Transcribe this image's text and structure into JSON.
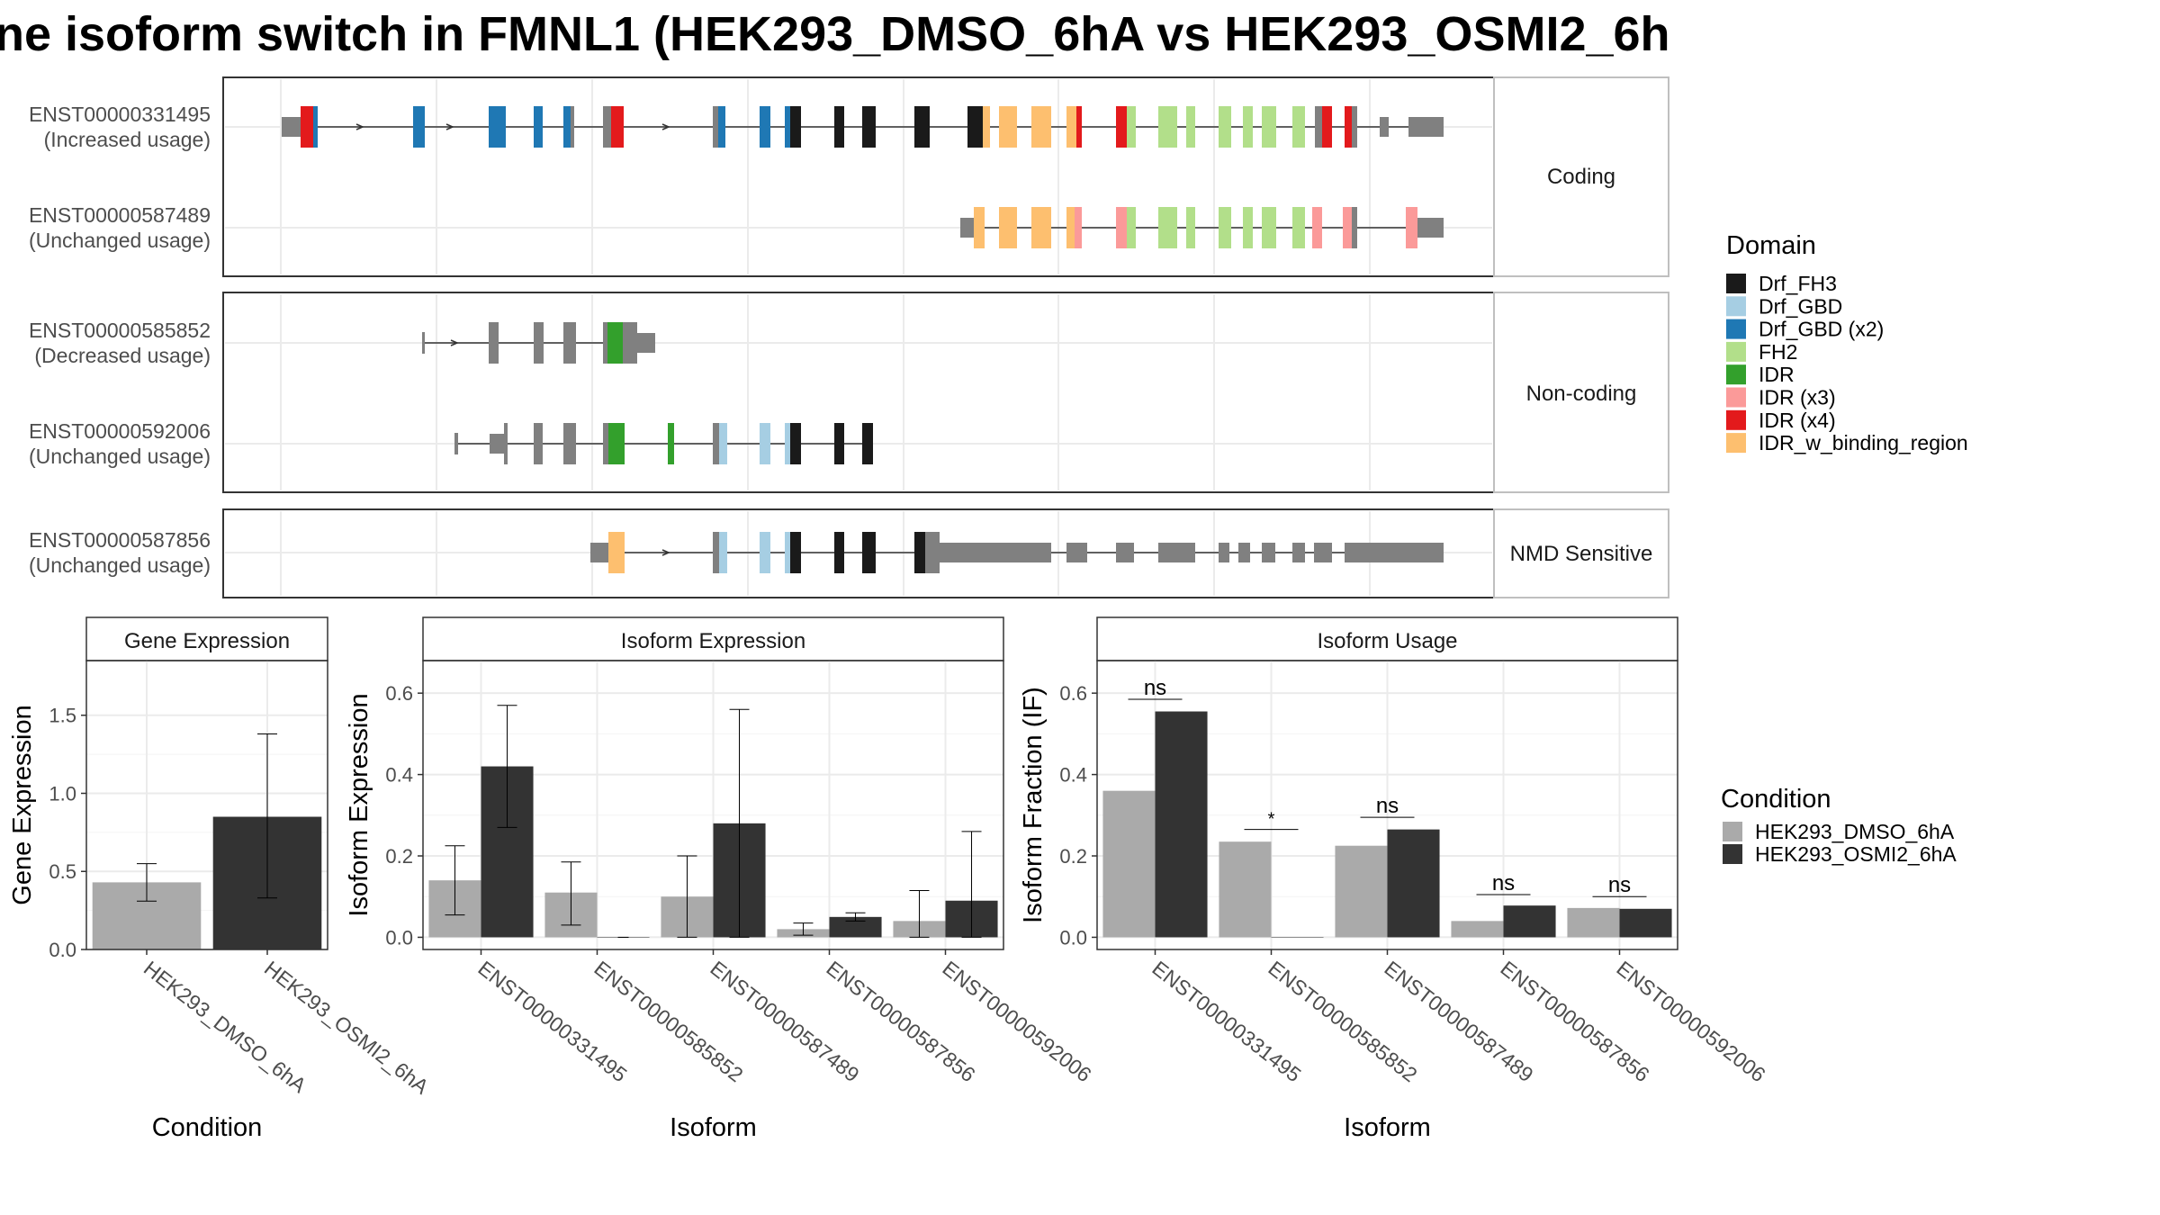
{
  "title": "ne isoform switch in FMNL1 (HEK293_DMSO_6hA vs HEK293_OSMI2_6h",
  "colors": {
    "condition1": "#aaaaaa",
    "condition2": "#333333",
    "exon": "#808080",
    "panel_border": "#333333",
    "strip_border": "#bfbfbf",
    "grid": "#ebebeb"
  },
  "domains": {
    "title": "Domain",
    "items": [
      {
        "label": "Drf_FH3",
        "color": "#1a1a1a"
      },
      {
        "label": "Drf_GBD",
        "color": "#a6cee3"
      },
      {
        "label": "Drf_GBD (x2)",
        "color": "#1f78b4"
      },
      {
        "label": "FH2",
        "color": "#b2df8a"
      },
      {
        "label": "IDR",
        "color": "#33a02c"
      },
      {
        "label": "IDR (x3)",
        "color": "#fb9a99"
      },
      {
        "label": "IDR (x4)",
        "color": "#e31a1c"
      },
      {
        "label": "IDR_w_binding_region",
        "color": "#fdbf6f"
      }
    ]
  },
  "structure": {
    "groups": [
      {
        "label": "Coding",
        "isoforms": [
          {
            "id": "ENST00000331495",
            "usage": "(Increased usage)"
          },
          {
            "id": "ENST00000587489",
            "usage": "(Unchanged usage)"
          }
        ]
      },
      {
        "label": "Non-coding",
        "isoforms": [
          {
            "id": "ENST00000585852",
            "usage": "(Decreased usage)"
          },
          {
            "id": "ENST00000592006",
            "usage": "(Unchanged usage)"
          }
        ]
      },
      {
        "label": "NMD Sensitive",
        "isoforms": [
          {
            "id": "ENST00000587856",
            "usage": "(Unchanged usage)"
          }
        ]
      }
    ]
  },
  "conditions": {
    "title": "Condition",
    "items": [
      "HEK293_DMSO_6hA",
      "HEK293_OSMI2_6hA"
    ]
  },
  "chart_data": [
    {
      "type": "bar",
      "title": "Gene Expression",
      "xlabel": "Condition",
      "ylabel": "Gene Expression",
      "categories": [
        "HEK293_DMSO_6hA",
        "HEK293_OSMI2_6hA"
      ],
      "values": [
        0.43,
        0.85
      ],
      "error_low": [
        0.31,
        0.33
      ],
      "error_high": [
        0.55,
        1.38
      ],
      "ylim": [
        0,
        1.85
      ],
      "yticks": [
        0.0,
        0.5,
        1.0,
        1.5
      ],
      "ytick_labels": [
        "0.0",
        "0.5",
        "1.0",
        "1.5"
      ]
    },
    {
      "type": "bar",
      "title": "Isoform Expression",
      "xlabel": "Isoform",
      "ylabel": "Isoform Expression",
      "categories": [
        "ENST00000331495",
        "ENST00000585852",
        "ENST00000587489",
        "ENST00000587856",
        "ENST00000592006"
      ],
      "series": [
        {
          "name": "HEK293_DMSO_6hA",
          "values": [
            0.14,
            0.11,
            0.1,
            0.02,
            0.04
          ],
          "error_low": [
            0.055,
            0.03,
            0.0,
            0.005,
            0.0
          ],
          "error_high": [
            0.225,
            0.185,
            0.2,
            0.035,
            0.115
          ]
        },
        {
          "name": "HEK293_OSMI2_6hA",
          "values": [
            0.42,
            0.0,
            0.28,
            0.05,
            0.09
          ],
          "error_low": [
            0.27,
            0.0,
            0.0,
            0.04,
            0.0
          ],
          "error_high": [
            0.57,
            0.0,
            0.56,
            0.06,
            0.26
          ]
        }
      ],
      "ylim": [
        -0.03,
        0.68
      ],
      "yticks": [
        0.0,
        0.2,
        0.4,
        0.6
      ],
      "ytick_labels": [
        "0.0",
        "0.2",
        "0.4",
        "0.6"
      ]
    },
    {
      "type": "bar",
      "title": "Isoform Usage",
      "xlabel": "Isoform",
      "ylabel": "Isoform Fraction (IF)",
      "categories": [
        "ENST00000331495",
        "ENST00000585852",
        "ENST00000587489",
        "ENST00000587856",
        "ENST00000592006"
      ],
      "series": [
        {
          "name": "HEK293_DMSO_6hA",
          "values": [
            0.36,
            0.235,
            0.225,
            0.04,
            0.072
          ]
        },
        {
          "name": "HEK293_OSMI2_6hA",
          "values": [
            0.555,
            0.0,
            0.265,
            0.078,
            0.07
          ]
        }
      ],
      "significance": [
        "ns",
        "*",
        "ns",
        "ns",
        "ns"
      ],
      "sig_y": [
        0.585,
        0.265,
        0.295,
        0.105,
        0.1
      ],
      "ylim": [
        -0.03,
        0.68
      ],
      "yticks": [
        0.0,
        0.2,
        0.4,
        0.6
      ],
      "ytick_labels": [
        "0.0",
        "0.2",
        "0.4",
        "0.6"
      ]
    }
  ]
}
